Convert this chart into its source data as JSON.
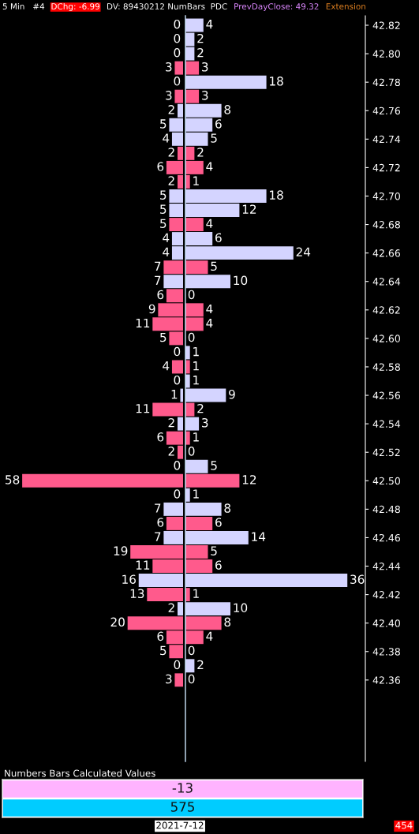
{
  "chart_data": [
    {
      "type": "bar",
      "orientation": "horizontal",
      "title": "5 Min   #4",
      "annotations": [
        "DChg: -6.99",
        "DV: 89430212 NumBars  PDC",
        "PrevDayClose: 49.32",
        "Extension"
      ],
      "categories": [
        "42.82",
        null,
        "42.80",
        null,
        "42.78",
        null,
        "42.76",
        null,
        "42.74",
        null,
        "42.72",
        null,
        "42.70",
        null,
        "42.68",
        null,
        "42.66",
        null,
        "42.64",
        null,
        "42.62",
        null,
        "42.60",
        null,
        "42.58",
        null,
        "42.56",
        null,
        "42.54",
        null,
        "42.52",
        null,
        "42.50",
        null,
        "42.48",
        null,
        "42.46",
        null,
        "42.44",
        null,
        "42.42",
        null,
        "42.40",
        null,
        "42.38",
        null,
        "42.36"
      ],
      "values": [
        0,
        0,
        0,
        3,
        0,
        3,
        2,
        5,
        4,
        2,
        6,
        2,
        5,
        5,
        5,
        4,
        4,
        7,
        7,
        6,
        9,
        11,
        5,
        0,
        4,
        0,
        1,
        11,
        2,
        6,
        2,
        0,
        58,
        0,
        7,
        6,
        7,
        19,
        11,
        16,
        13,
        2,
        20,
        6,
        5,
        0,
        3
      ],
      "colors": [
        "#d4d4ff",
        "#d4d4ff",
        "#d4d4ff",
        "#ff5a8c",
        "#d4d4ff",
        "#ff5a8c",
        "#d4d4ff",
        "#d4d4ff",
        "#d4d4ff",
        "#ff5a8c",
        "#ff5a8c",
        "#ff5a8c",
        "#d4d4ff",
        "#d4d4ff",
        "#ff5a8c",
        "#d4d4ff",
        "#d4d4ff",
        "#ff5a8c",
        "#d4d4ff",
        "#ff5a8c",
        "#ff5a8c",
        "#ff5a8c",
        "#ff5a8c",
        "#d4d4ff",
        "#ff5a8c",
        "#d4d4ff",
        "#d4d4ff",
        "#ff5a8c",
        "#d4d4ff",
        "#ff5a8c",
        "#ff5a8c",
        "#d4d4ff",
        "#ff5a8c",
        "#d4d4ff",
        "#d4d4ff",
        "#ff5a8c",
        "#d4d4ff",
        "#ff5a8c",
        "#ff5a8c",
        "#d4d4ff",
        "#ff5a8c",
        "#d4d4ff",
        "#ff5a8c",
        "#ff5a8c",
        "#ff5a8c",
        "#d4d4ff",
        "#ff5a8c"
      ],
      "xlim": [
        66,
        0
      ],
      "tick_labels": false,
      "data_labels": true
    },
    {
      "type": "bar",
      "orientation": "horizontal",
      "categories": [
        "42.82",
        null,
        "42.80",
        null,
        "42.78",
        null,
        "42.76",
        null,
        "42.74",
        null,
        "42.72",
        null,
        "42.70",
        null,
        "42.68",
        null,
        "42.66",
        null,
        "42.64",
        null,
        "42.62",
        null,
        "42.60",
        null,
        "42.58",
        null,
        "42.56",
        null,
        "42.54",
        null,
        "42.52",
        null,
        "42.50",
        null,
        "42.48",
        null,
        "42.46",
        null,
        "42.44",
        null,
        "42.42",
        null,
        "42.40",
        null,
        "42.38",
        null,
        "42.36"
      ],
      "values": [
        4,
        2,
        2,
        3,
        18,
        3,
        8,
        6,
        5,
        2,
        4,
        1,
        18,
        12,
        4,
        6,
        24,
        5,
        10,
        0,
        4,
        4,
        0,
        1,
        1,
        1,
        9,
        2,
        3,
        1,
        0,
        5,
        12,
        1,
        8,
        6,
        14,
        5,
        6,
        36,
        1,
        10,
        8,
        4,
        0,
        2,
        0
      ],
      "colors": [
        "#d4d4ff",
        "#d4d4ff",
        "#d4d4ff",
        "#ff5a8c",
        "#d4d4ff",
        "#ff5a8c",
        "#d4d4ff",
        "#d4d4ff",
        "#d4d4ff",
        "#ff5a8c",
        "#ff5a8c",
        "#ff5a8c",
        "#d4d4ff",
        "#d4d4ff",
        "#ff5a8c",
        "#d4d4ff",
        "#d4d4ff",
        "#ff5a8c",
        "#d4d4ff",
        "#ff5a8c",
        "#ff5a8c",
        "#ff5a8c",
        "#ff5a8c",
        "#d4d4ff",
        "#ff5a8c",
        "#d4d4ff",
        "#d4d4ff",
        "#ff5a8c",
        "#d4d4ff",
        "#ff5a8c",
        "#ff5a8c",
        "#d4d4ff",
        "#ff5a8c",
        "#d4d4ff",
        "#d4d4ff",
        "#ff5a8c",
        "#d4d4ff",
        "#ff5a8c",
        "#ff5a8c",
        "#d4d4ff",
        "#ff5a8c",
        "#d4d4ff",
        "#ff5a8c",
        "#ff5a8c",
        "#ff5a8c",
        "#d4d4ff",
        "#ff5a8c"
      ],
      "xlim": [
        0,
        40
      ],
      "tick_labels": "y",
      "data_labels": true
    },
    {
      "type": "other",
      "title": "Numbers Bars Calculated Values",
      "categories": [
        null,
        null
      ],
      "values": [
        -13,
        575
      ],
      "colors": [
        "#ffb3ff",
        "#00ccff"
      ],
      "data_labels": true,
      "annotations": [
        "2021-7-12",
        "454"
      ]
    }
  ]
}
